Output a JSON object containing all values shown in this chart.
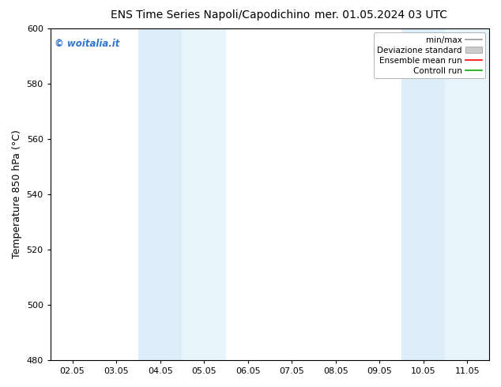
{
  "title_left": "ENS Time Series Napoli/Capodichino",
  "title_right": "mer. 01.05.2024 03 UTC",
  "ylabel": "Temperature 850 hPa (°C)",
  "ylim": [
    480,
    600
  ],
  "yticks": [
    480,
    500,
    520,
    540,
    560,
    580,
    600
  ],
  "xtick_labels": [
    "02.05",
    "03.05",
    "04.05",
    "05.05",
    "06.05",
    "07.05",
    "08.05",
    "09.05",
    "10.05",
    "11.05"
  ],
  "shaded_bands": [
    {
      "xmin": 2.0,
      "xmax": 3.0,
      "color": "#ddeef8"
    },
    {
      "xmin": 3.0,
      "xmax": 4.0,
      "color": "#e8f4fb"
    },
    {
      "xmin": 8.0,
      "xmax": 9.0,
      "color": "#ddeef8"
    },
    {
      "xmin": 9.0,
      "xmax": 10.0,
      "color": "#e8f4fb"
    }
  ],
  "watermark": "© woitalia.it",
  "watermark_color": "#3377cc",
  "legend_labels": [
    "min/max",
    "Deviazione standard",
    "Ensemble mean run",
    "Controll run"
  ],
  "legend_line_colors": [
    "#999999",
    "#cccccc",
    "#ff0000",
    "#00aa00"
  ],
  "background_color": "#ffffff",
  "title_fontsize": 10,
  "axis_label_fontsize": 9,
  "tick_fontsize": 8,
  "legend_fontsize": 7.5
}
